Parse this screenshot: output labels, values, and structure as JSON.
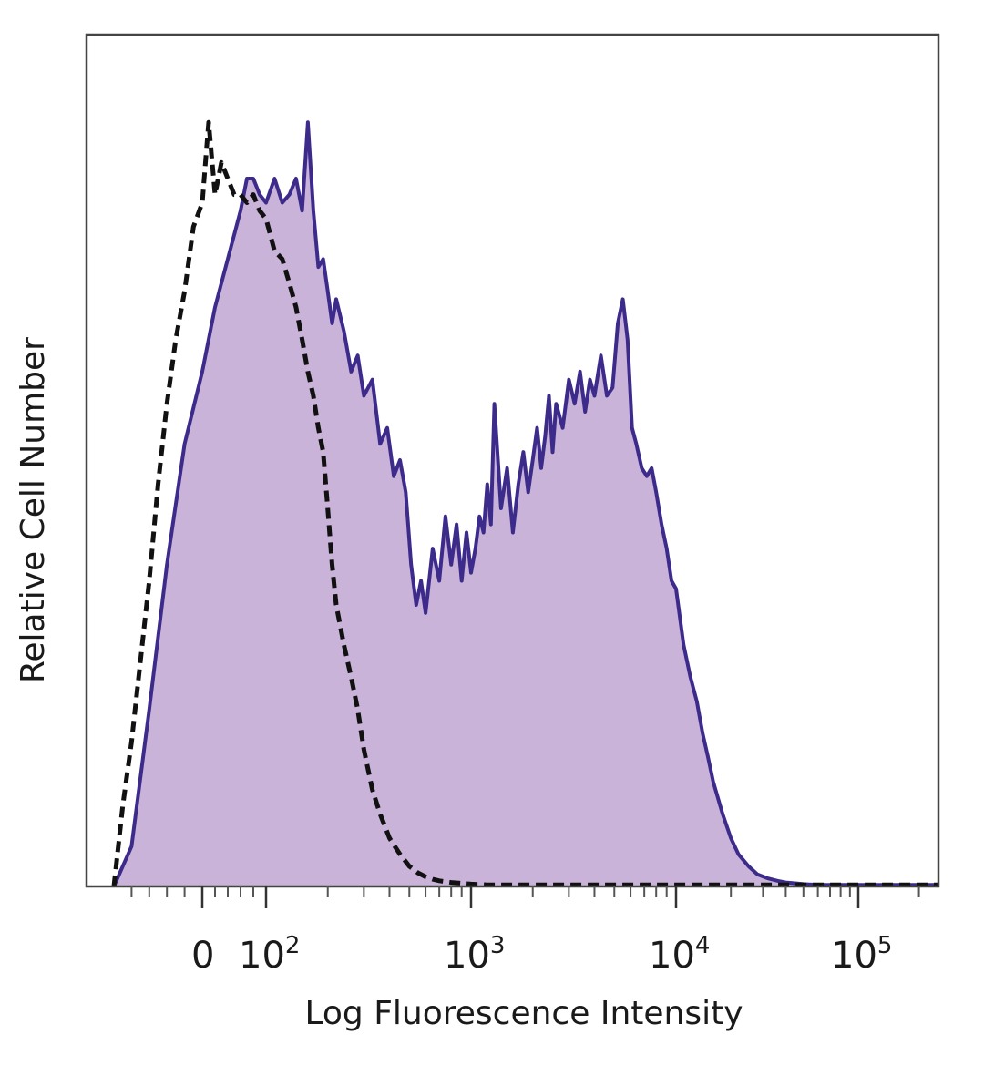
{
  "chart_data": {
    "type": "area",
    "xlabel": "Log Fluorescence Intensity",
    "ylabel": "Relative Cell Number",
    "x_scale": "biexponential",
    "xlim": [
      -100,
      250000
    ],
    "ylim": [
      0,
      1
    ],
    "grid": false,
    "x_ticks": [
      {
        "base": "0",
        "exp": "",
        "value": 0
      },
      {
        "base": "10",
        "exp": "2",
        "value": 100
      },
      {
        "base": "10",
        "exp": "3",
        "value": 1000
      },
      {
        "base": "10",
        "exp": "4",
        "value": 10000
      },
      {
        "base": "10",
        "exp": "5",
        "value": 100000
      }
    ],
    "series": [
      {
        "style": "filled",
        "fill_color": "#c9b3d9",
        "line_color": "#3d2b8c",
        "x": [
          -100,
          -80,
          -60,
          -40,
          -20,
          0,
          20,
          40,
          60,
          70,
          80,
          90,
          100,
          110,
          120,
          130,
          140,
          150,
          160,
          170,
          180,
          190,
          200,
          210,
          220,
          240,
          260,
          280,
          300,
          330,
          360,
          390,
          420,
          450,
          480,
          510,
          540,
          570,
          600,
          650,
          700,
          750,
          800,
          850,
          900,
          950,
          1000,
          1050,
          1100,
          1150,
          1200,
          1250,
          1300,
          1400,
          1500,
          1600,
          1700,
          1800,
          1900,
          2000,
          2100,
          2200,
          2300,
          2400,
          2500,
          2600,
          2800,
          3000,
          3200,
          3400,
          3600,
          3800,
          4000,
          4300,
          4600,
          4900,
          5200,
          5500,
          5800,
          6100,
          6400,
          6800,
          7200,
          7600,
          8000,
          8500,
          9000,
          9500,
          10000,
          11000,
          12000,
          13000,
          14000,
          15000,
          16000,
          18000,
          20000,
          22000,
          25000,
          28000,
          32000,
          36000,
          40000,
          45000,
          50000,
          60000,
          80000,
          100000,
          150000,
          250000
        ],
        "y": [
          0,
          0.05,
          0.22,
          0.4,
          0.55,
          0.64,
          0.72,
          0.78,
          0.84,
          0.88,
          0.88,
          0.86,
          0.85,
          0.88,
          0.85,
          0.86,
          0.88,
          0.84,
          0.95,
          0.84,
          0.77,
          0.78,
          0.74,
          0.7,
          0.73,
          0.69,
          0.64,
          0.66,
          0.61,
          0.63,
          0.55,
          0.57,
          0.51,
          0.53,
          0.49,
          0.4,
          0.35,
          0.38,
          0.34,
          0.42,
          0.38,
          0.46,
          0.4,
          0.45,
          0.38,
          0.44,
          0.39,
          0.42,
          0.46,
          0.44,
          0.5,
          0.45,
          0.6,
          0.47,
          0.52,
          0.44,
          0.5,
          0.54,
          0.49,
          0.53,
          0.57,
          0.52,
          0.56,
          0.61,
          0.54,
          0.6,
          0.57,
          0.63,
          0.6,
          0.64,
          0.59,
          0.63,
          0.61,
          0.66,
          0.61,
          0.62,
          0.7,
          0.73,
          0.68,
          0.57,
          0.55,
          0.52,
          0.51,
          0.52,
          0.49,
          0.45,
          0.42,
          0.38,
          0.37,
          0.3,
          0.26,
          0.23,
          0.19,
          0.16,
          0.13,
          0.09,
          0.06,
          0.04,
          0.025,
          0.015,
          0.01,
          0.007,
          0.005,
          0.004,
          0.003,
          0.002,
          0.002,
          0.002,
          0.002,
          0.002
        ]
      },
      {
        "style": "dashed",
        "line_color": "#111111",
        "x": [
          -100,
          -90,
          -80,
          -70,
          -60,
          -50,
          -40,
          -30,
          -20,
          -10,
          0,
          10,
          20,
          30,
          40,
          50,
          60,
          70,
          80,
          90,
          100,
          110,
          120,
          130,
          140,
          150,
          160,
          170,
          180,
          190,
          200,
          210,
          220,
          240,
          260,
          280,
          300,
          330,
          360,
          400,
          450,
          500,
          550,
          600,
          650,
          700,
          750,
          800,
          900,
          1000,
          1200,
          1500,
          2000,
          3000,
          5000,
          10000,
          30000,
          100000,
          250000
        ],
        "y": [
          0.0,
          0.1,
          0.18,
          0.28,
          0.38,
          0.5,
          0.6,
          0.68,
          0.74,
          0.82,
          0.85,
          0.95,
          0.86,
          0.9,
          0.88,
          0.86,
          0.86,
          0.85,
          0.86,
          0.84,
          0.83,
          0.79,
          0.78,
          0.75,
          0.72,
          0.68,
          0.64,
          0.61,
          0.57,
          0.54,
          0.47,
          0.4,
          0.35,
          0.3,
          0.26,
          0.22,
          0.17,
          0.12,
          0.09,
          0.06,
          0.04,
          0.025,
          0.017,
          0.012,
          0.009,
          0.007,
          0.006,
          0.005,
          0.004,
          0.003,
          0.002,
          0.002,
          0.002,
          0.002,
          0.002,
          0.002,
          0.002,
          0.002,
          0.002
        ]
      }
    ]
  }
}
